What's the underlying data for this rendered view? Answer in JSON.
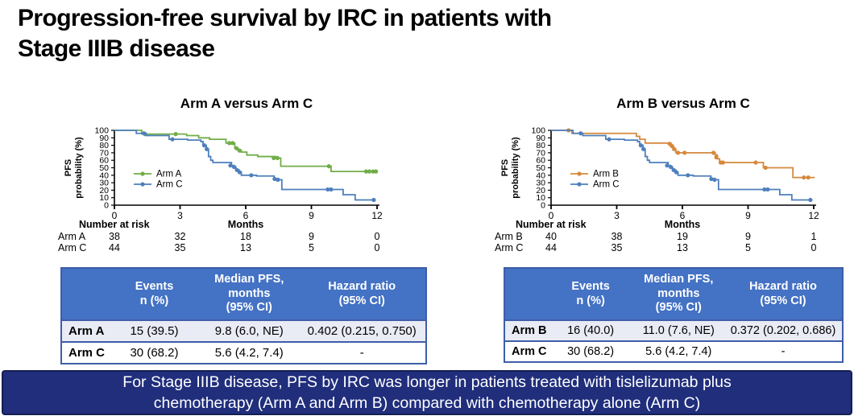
{
  "page_title": "Progression-free survival by IRC in patients with\nStage IIIB disease",
  "colors": {
    "arm_a_green": "#70AD47",
    "arm_b_orange": "#D6893C",
    "arm_c_blue": "#4E7FBC",
    "table_header_blue": "#4472C4",
    "table_alt_row": "#E9EBF5",
    "table_border": "#3E5EA9",
    "banner_navy": "#202E7C",
    "text_black": "#000000",
    "text_white": "#FFFFFF"
  },
  "panels": [
    {
      "table": {
        "headers": [
          "",
          "Events\nn (%)",
          "Median PFS,\nmonths\n(95% CI)",
          "Hazard ratio\n(95% CI)"
        ],
        "rows": [
          {
            "arm": "Arm A",
            "events": "15 (39.5)",
            "median": "9.8 (6.0, NE)",
            "hr": "0.402 (0.215, 0.750)"
          },
          {
            "arm": "Arm C",
            "events": "30 (68.2)",
            "median": "5.6 (4.2, 7.4)",
            "hr": "-"
          }
        ]
      }
    },
    {
      "table": {
        "headers": [
          "",
          "Events\nn (%)",
          "Median PFS,\nmonths\n(95% CI)",
          "Hazard ratio\n(95% CI)"
        ],
        "rows": [
          {
            "arm": "Arm B",
            "events": "16 (40.0)",
            "median": "11.0 (7.6, NE)",
            "hr": "0.372 (0.202, 0.686)"
          },
          {
            "arm": "Arm C",
            "events": "30 (68.2)",
            "median": "5.6 (4.2, 7.4)",
            "hr": "-"
          }
        ]
      }
    }
  ],
  "chart_data": [
    {
      "type": "line",
      "subtype": "kaplan-meier",
      "title": "Arm A versus Arm C",
      "ylabel": "PFS probability (%)",
      "ylabel_lines": [
        "PFS",
        "probability (%)"
      ],
      "xlabel": "Months",
      "xlim": [
        0,
        12
      ],
      "ylim": [
        0,
        100
      ],
      "xticks": [
        0,
        3,
        6,
        9,
        12
      ],
      "yticks": [
        0,
        10,
        20,
        30,
        40,
        50,
        60,
        70,
        80,
        90,
        100
      ],
      "grid": false,
      "legend_position": "inside-left",
      "series": [
        {
          "name": "Arm A",
          "color": "#70AD47",
          "steps": [
            [
              0,
              100
            ],
            [
              1.25,
              95
            ],
            [
              3.3,
              93
            ],
            [
              3.85,
              90
            ],
            [
              4.35,
              88
            ],
            [
              5.1,
              83
            ],
            [
              5.5,
              76
            ],
            [
              5.65,
              73
            ],
            [
              5.8,
              71
            ],
            [
              6.05,
              67
            ],
            [
              6.55,
              65
            ],
            [
              7.35,
              63
            ],
            [
              7.6,
              52
            ],
            [
              9.9,
              45
            ]
          ],
          "end": 12.0,
          "censors": [
            [
              1.4,
              95
            ],
            [
              2.8,
              95
            ],
            [
              5.25,
              83
            ],
            [
              5.4,
              83
            ],
            [
              5.58,
              76
            ],
            [
              5.72,
              73
            ],
            [
              7.28,
              63
            ],
            [
              7.45,
              63
            ],
            [
              9.8,
              52
            ],
            [
              11.5,
              45
            ],
            [
              11.65,
              45
            ],
            [
              11.82,
              45
            ],
            [
              11.95,
              45
            ]
          ]
        },
        {
          "name": "Arm C",
          "color": "#4E7FBC",
          "steps": [
            [
              0,
              100
            ],
            [
              1.0,
              96
            ],
            [
              1.45,
              93
            ],
            [
              2.5,
              88
            ],
            [
              3.35,
              87
            ],
            [
              3.95,
              85
            ],
            [
              4.05,
              80
            ],
            [
              4.2,
              75
            ],
            [
              4.3,
              65
            ],
            [
              4.4,
              60
            ],
            [
              4.5,
              57
            ],
            [
              5.35,
              53
            ],
            [
              5.45,
              51
            ],
            [
              5.55,
              47
            ],
            [
              5.7,
              44
            ],
            [
              5.8,
              40
            ],
            [
              6.5,
              39
            ],
            [
              7.3,
              35
            ],
            [
              7.45,
              34
            ],
            [
              7.65,
              21
            ],
            [
              10.45,
              14
            ],
            [
              11.0,
              7
            ]
          ],
          "end": 11.9,
          "censors": [
            [
              1.35,
              96
            ],
            [
              2.65,
              88
            ],
            [
              4.1,
              80
            ],
            [
              4.22,
              75
            ],
            [
              5.3,
              53
            ],
            [
              5.47,
              51
            ],
            [
              5.6,
              47
            ],
            [
              5.72,
              44
            ],
            [
              6.25,
              40
            ],
            [
              7.32,
              35
            ],
            [
              7.47,
              34
            ],
            [
              9.75,
              21
            ],
            [
              9.9,
              21
            ],
            [
              11.85,
              7
            ]
          ]
        }
      ],
      "number_at_risk": {
        "label": "Number at risk",
        "rows": [
          {
            "name": "Arm A",
            "values": [
              "38",
              "32",
              "18",
              "9",
              "0"
            ]
          },
          {
            "name": "Arm C",
            "values": [
              "44",
              "35",
              "13",
              "5",
              "0"
            ]
          }
        ]
      }
    },
    {
      "type": "line",
      "subtype": "kaplan-meier",
      "title": "Arm B versus Arm C",
      "ylabel": "PFS probability (%)",
      "ylabel_lines": [
        "PFS",
        "probability (%)"
      ],
      "xlabel": "Months",
      "xlim": [
        0,
        12
      ],
      "ylim": [
        0,
        100
      ],
      "xticks": [
        0,
        3,
        6,
        9,
        12
      ],
      "yticks": [
        0,
        10,
        20,
        30,
        40,
        50,
        60,
        70,
        80,
        90,
        100
      ],
      "grid": false,
      "legend_position": "inside-left",
      "series": [
        {
          "name": "Arm B",
          "color": "#D6893C",
          "steps": [
            [
              0,
              100
            ],
            [
              0.95,
              96
            ],
            [
              3.9,
              92
            ],
            [
              4.05,
              88
            ],
            [
              4.3,
              83
            ],
            [
              5.4,
              82
            ],
            [
              5.5,
              79
            ],
            [
              5.6,
              75
            ],
            [
              5.7,
              70
            ],
            [
              7.5,
              67
            ],
            [
              7.6,
              62
            ],
            [
              7.7,
              57
            ],
            [
              9.7,
              50
            ],
            [
              11.05,
              37
            ]
          ],
          "end": 12.05,
          "censors": [
            [
              0.8,
              100
            ],
            [
              5.42,
              82
            ],
            [
              5.52,
              79
            ],
            [
              5.62,
              75
            ],
            [
              5.8,
              70
            ],
            [
              6.1,
              70
            ],
            [
              7.42,
              70
            ],
            [
              7.55,
              64
            ],
            [
              7.75,
              57
            ],
            [
              7.85,
              57
            ],
            [
              9.35,
              57
            ],
            [
              9.8,
              50
            ],
            [
              11.55,
              37
            ],
            [
              11.75,
              37
            ]
          ]
        },
        {
          "name": "Arm C",
          "color": "#4E7FBC",
          "steps": [
            [
              0,
              100
            ],
            [
              1.0,
              96
            ],
            [
              1.45,
              93
            ],
            [
              2.5,
              88
            ],
            [
              3.35,
              87
            ],
            [
              3.95,
              85
            ],
            [
              4.05,
              80
            ],
            [
              4.2,
              75
            ],
            [
              4.3,
              65
            ],
            [
              4.4,
              60
            ],
            [
              4.5,
              57
            ],
            [
              5.35,
              53
            ],
            [
              5.45,
              51
            ],
            [
              5.55,
              47
            ],
            [
              5.7,
              44
            ],
            [
              5.8,
              40
            ],
            [
              6.5,
              39
            ],
            [
              7.3,
              35
            ],
            [
              7.45,
              34
            ],
            [
              7.65,
              21
            ],
            [
              10.45,
              14
            ],
            [
              11.0,
              7
            ]
          ],
          "end": 11.9,
          "censors": [
            [
              1.35,
              96
            ],
            [
              2.65,
              88
            ],
            [
              4.1,
              80
            ],
            [
              4.22,
              75
            ],
            [
              5.3,
              53
            ],
            [
              5.47,
              51
            ],
            [
              5.6,
              47
            ],
            [
              5.72,
              44
            ],
            [
              6.25,
              40
            ],
            [
              7.32,
              35
            ],
            [
              7.47,
              34
            ],
            [
              9.75,
              21
            ],
            [
              9.9,
              21
            ],
            [
              11.85,
              7
            ]
          ]
        }
      ],
      "number_at_risk": {
        "label": "Number at risk",
        "rows": [
          {
            "name": "Arm B",
            "values": [
              "40",
              "38",
              "19",
              "9",
              "1"
            ]
          },
          {
            "name": "Arm C",
            "values": [
              "44",
              "35",
              "13",
              "5",
              "0"
            ]
          }
        ]
      }
    }
  ],
  "banner": {
    "text": "For Stage IIIB disease, PFS by IRC was longer in patients treated with tislelizumab plus\nchemotherapy (Arm A and Arm B) compared with chemotherapy alone (Arm C)"
  }
}
